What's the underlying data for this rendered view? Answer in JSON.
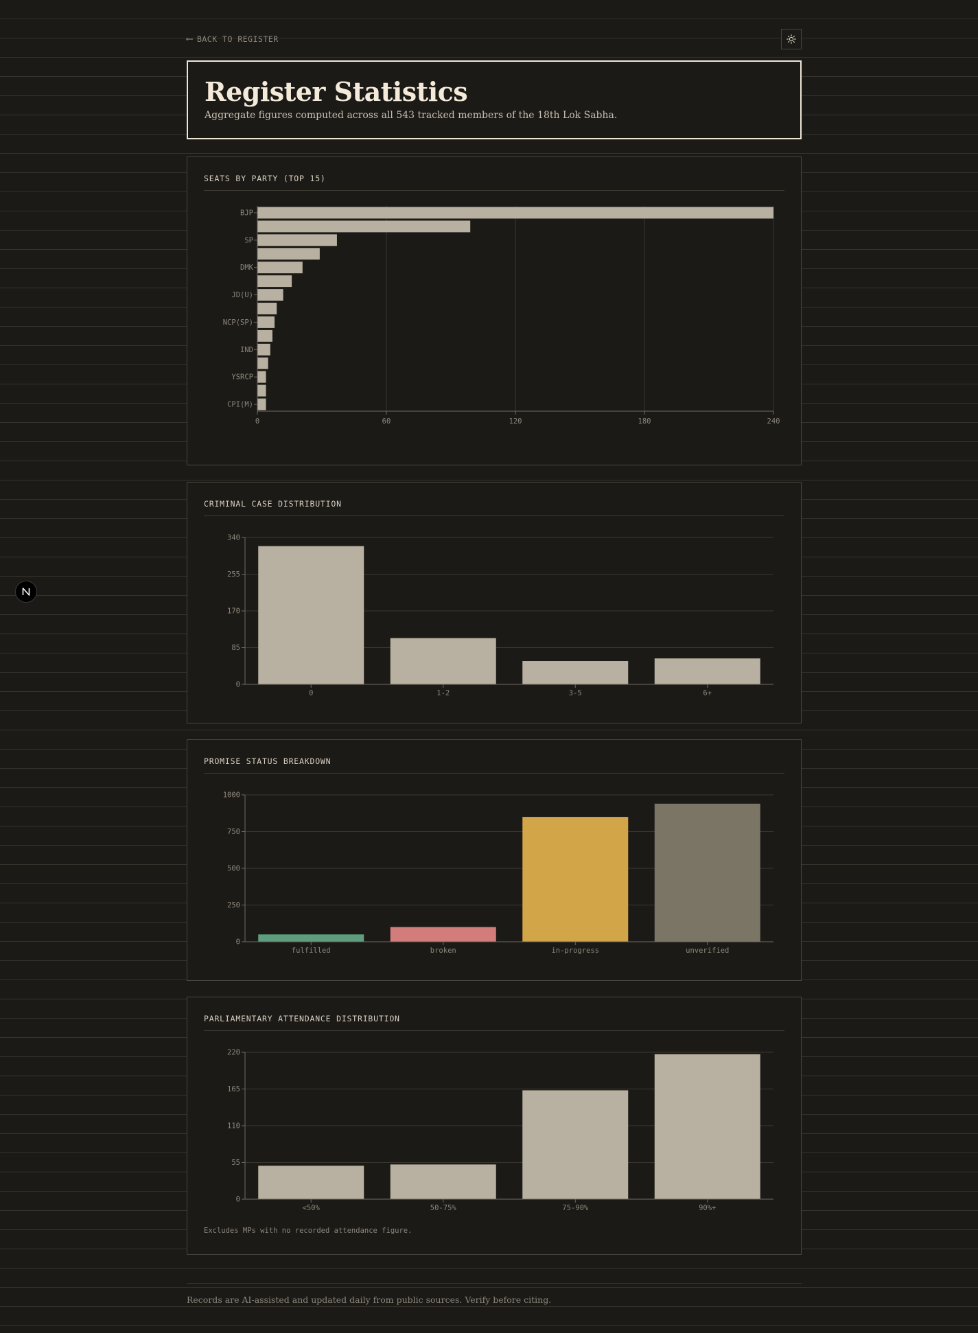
{
  "nav": {
    "back_label": "BACK TO REGISTER"
  },
  "header": {
    "title": "Register Statistics",
    "subtitle": "Aggregate figures computed across all 543 tracked members of the 18th Lok Sabha."
  },
  "colors": {
    "bar": "#b8b0a0",
    "grid": "#3b3832",
    "axis": "#6f6a60",
    "tick_label": "#8d877b",
    "fulfilled": "#5e9e7e",
    "broken": "#d37c7c",
    "in_progress": "#d1a548",
    "unverified": "#7b7566"
  },
  "chart_data": [
    {
      "id": "seats",
      "type": "bar",
      "orientation": "horizontal",
      "title": "SEATS BY PARTY (TOP 15)",
      "categories": [
        "BJP",
        "",
        "SP",
        "",
        "DMK",
        "",
        "JD(U)",
        "",
        "NCP(SP)",
        "",
        "IND",
        "",
        "YSRCP",
        "",
        "CPI(M)"
      ],
      "values": [
        240,
        99,
        37,
        29,
        21,
        16,
        12,
        9,
        8,
        7,
        6,
        5,
        4,
        4,
        4
      ],
      "xlim": [
        0,
        240
      ],
      "xticks": [
        0,
        60,
        120,
        180,
        240
      ],
      "grid": "vertical"
    },
    {
      "id": "criminal",
      "type": "bar",
      "title": "CRIMINAL CASE DISTRIBUTION",
      "categories": [
        "0",
        "1-2",
        "3-5",
        "6+"
      ],
      "values": [
        320,
        107,
        54,
        60
      ],
      "ylim": [
        0,
        340
      ],
      "yticks": [
        0,
        85,
        170,
        255,
        340
      ],
      "grid": "horizontal"
    },
    {
      "id": "promises",
      "type": "bar",
      "title": "PROMISE STATUS BREAKDOWN",
      "categories": [
        "fulfilled",
        "broken",
        "in-progress",
        "unverified"
      ],
      "values": [
        50,
        100,
        850,
        940
      ],
      "bar_colors": [
        "#5e9e7e",
        "#d37c7c",
        "#d1a548",
        "#7b7566"
      ],
      "ylim": [
        0,
        1000
      ],
      "yticks": [
        0,
        250,
        500,
        750,
        1000
      ],
      "grid": "horizontal"
    },
    {
      "id": "attendance",
      "type": "bar",
      "title": "PARLIAMENTARY ATTENDANCE DISTRIBUTION",
      "categories": [
        "<50%",
        "50-75%",
        "75-90%",
        "90%+"
      ],
      "values": [
        50,
        52,
        163,
        217
      ],
      "ylim": [
        0,
        220
      ],
      "yticks": [
        0,
        55,
        110,
        165,
        220
      ],
      "grid": "horizontal"
    }
  ],
  "notes": {
    "attendance": "Excludes MPs with no recorded attendance figure."
  },
  "footer": {
    "text": "Records are AI-assisted and updated daily from public sources. Verify before citing."
  }
}
